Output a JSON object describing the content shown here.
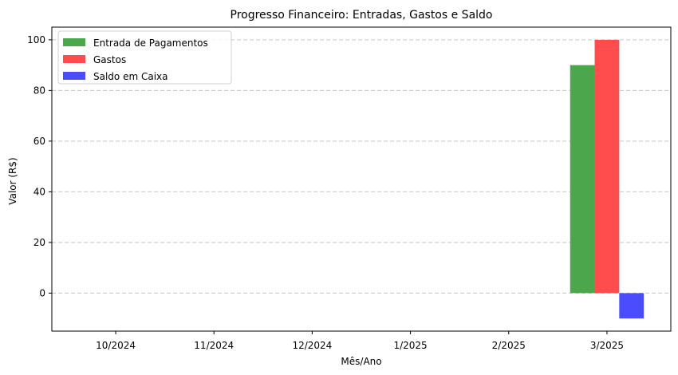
{
  "chart_data": {
    "type": "bar",
    "title": "Progresso Financeiro: Entradas, Gastos e Saldo",
    "xlabel": "Mês/Ano",
    "ylabel": "Valor (R$)",
    "categories": [
      "10/2024",
      "11/2024",
      "12/2024",
      "1/2025",
      "2/2025",
      "3/2025"
    ],
    "series": [
      {
        "name": "Entrada de Pagamentos",
        "color": "#4ca64c",
        "values": [
          0,
          0,
          0,
          0,
          0,
          90
        ]
      },
      {
        "name": "Gastos",
        "color": "#ff4c4c",
        "values": [
          0,
          0,
          0,
          0,
          0,
          100
        ]
      },
      {
        "name": "Saldo em Caixa",
        "color": "#4c4cff",
        "values": [
          0,
          0,
          0,
          0,
          0,
          -10
        ]
      }
    ],
    "ylim": [
      -15,
      105
    ],
    "yticks": [
      0,
      20,
      40,
      60,
      80,
      100
    ],
    "grid": "y-dashed",
    "legend_position": "top-left"
  }
}
